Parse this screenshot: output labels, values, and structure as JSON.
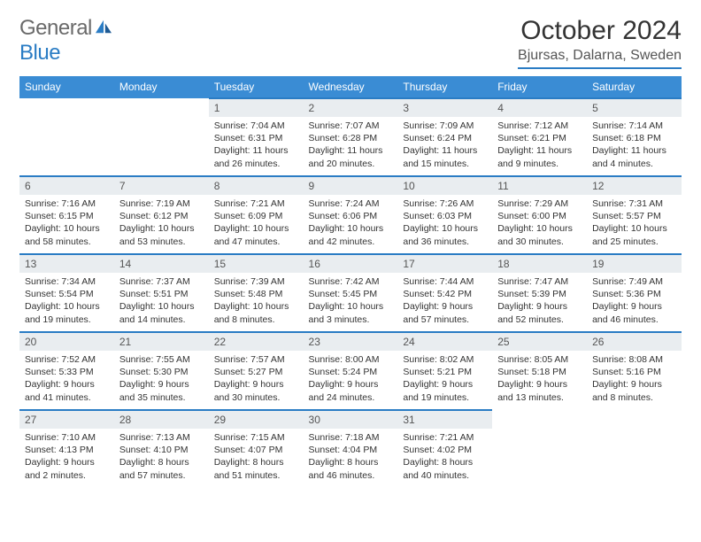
{
  "logo": {
    "word1": "General",
    "word2": "Blue"
  },
  "title": "October 2024",
  "location": "Bjursas, Dalarna, Sweden",
  "colors": {
    "header_bg": "#3a8cd4",
    "header_text": "#ffffff",
    "rule": "#2a7cc4",
    "daynum_bg": "#e9edf0",
    "logo_gray": "#6a6a6a",
    "logo_blue": "#2a7cc4",
    "body_text": "#333333"
  },
  "weekdays": [
    "Sunday",
    "Monday",
    "Tuesday",
    "Wednesday",
    "Thursday",
    "Friday",
    "Saturday"
  ],
  "weeks": [
    [
      null,
      null,
      {
        "n": "1",
        "sr": "Sunrise: 7:04 AM",
        "ss": "Sunset: 6:31 PM",
        "dl": "Daylight: 11 hours and 26 minutes."
      },
      {
        "n": "2",
        "sr": "Sunrise: 7:07 AM",
        "ss": "Sunset: 6:28 PM",
        "dl": "Daylight: 11 hours and 20 minutes."
      },
      {
        "n": "3",
        "sr": "Sunrise: 7:09 AM",
        "ss": "Sunset: 6:24 PM",
        "dl": "Daylight: 11 hours and 15 minutes."
      },
      {
        "n": "4",
        "sr": "Sunrise: 7:12 AM",
        "ss": "Sunset: 6:21 PM",
        "dl": "Daylight: 11 hours and 9 minutes."
      },
      {
        "n": "5",
        "sr": "Sunrise: 7:14 AM",
        "ss": "Sunset: 6:18 PM",
        "dl": "Daylight: 11 hours and 4 minutes."
      }
    ],
    [
      {
        "n": "6",
        "sr": "Sunrise: 7:16 AM",
        "ss": "Sunset: 6:15 PM",
        "dl": "Daylight: 10 hours and 58 minutes."
      },
      {
        "n": "7",
        "sr": "Sunrise: 7:19 AM",
        "ss": "Sunset: 6:12 PM",
        "dl": "Daylight: 10 hours and 53 minutes."
      },
      {
        "n": "8",
        "sr": "Sunrise: 7:21 AM",
        "ss": "Sunset: 6:09 PM",
        "dl": "Daylight: 10 hours and 47 minutes."
      },
      {
        "n": "9",
        "sr": "Sunrise: 7:24 AM",
        "ss": "Sunset: 6:06 PM",
        "dl": "Daylight: 10 hours and 42 minutes."
      },
      {
        "n": "10",
        "sr": "Sunrise: 7:26 AM",
        "ss": "Sunset: 6:03 PM",
        "dl": "Daylight: 10 hours and 36 minutes."
      },
      {
        "n": "11",
        "sr": "Sunrise: 7:29 AM",
        "ss": "Sunset: 6:00 PM",
        "dl": "Daylight: 10 hours and 30 minutes."
      },
      {
        "n": "12",
        "sr": "Sunrise: 7:31 AM",
        "ss": "Sunset: 5:57 PM",
        "dl": "Daylight: 10 hours and 25 minutes."
      }
    ],
    [
      {
        "n": "13",
        "sr": "Sunrise: 7:34 AM",
        "ss": "Sunset: 5:54 PM",
        "dl": "Daylight: 10 hours and 19 minutes."
      },
      {
        "n": "14",
        "sr": "Sunrise: 7:37 AM",
        "ss": "Sunset: 5:51 PM",
        "dl": "Daylight: 10 hours and 14 minutes."
      },
      {
        "n": "15",
        "sr": "Sunrise: 7:39 AM",
        "ss": "Sunset: 5:48 PM",
        "dl": "Daylight: 10 hours and 8 minutes."
      },
      {
        "n": "16",
        "sr": "Sunrise: 7:42 AM",
        "ss": "Sunset: 5:45 PM",
        "dl": "Daylight: 10 hours and 3 minutes."
      },
      {
        "n": "17",
        "sr": "Sunrise: 7:44 AM",
        "ss": "Sunset: 5:42 PM",
        "dl": "Daylight: 9 hours and 57 minutes."
      },
      {
        "n": "18",
        "sr": "Sunrise: 7:47 AM",
        "ss": "Sunset: 5:39 PM",
        "dl": "Daylight: 9 hours and 52 minutes."
      },
      {
        "n": "19",
        "sr": "Sunrise: 7:49 AM",
        "ss": "Sunset: 5:36 PM",
        "dl": "Daylight: 9 hours and 46 minutes."
      }
    ],
    [
      {
        "n": "20",
        "sr": "Sunrise: 7:52 AM",
        "ss": "Sunset: 5:33 PM",
        "dl": "Daylight: 9 hours and 41 minutes."
      },
      {
        "n": "21",
        "sr": "Sunrise: 7:55 AM",
        "ss": "Sunset: 5:30 PM",
        "dl": "Daylight: 9 hours and 35 minutes."
      },
      {
        "n": "22",
        "sr": "Sunrise: 7:57 AM",
        "ss": "Sunset: 5:27 PM",
        "dl": "Daylight: 9 hours and 30 minutes."
      },
      {
        "n": "23",
        "sr": "Sunrise: 8:00 AM",
        "ss": "Sunset: 5:24 PM",
        "dl": "Daylight: 9 hours and 24 minutes."
      },
      {
        "n": "24",
        "sr": "Sunrise: 8:02 AM",
        "ss": "Sunset: 5:21 PM",
        "dl": "Daylight: 9 hours and 19 minutes."
      },
      {
        "n": "25",
        "sr": "Sunrise: 8:05 AM",
        "ss": "Sunset: 5:18 PM",
        "dl": "Daylight: 9 hours and 13 minutes."
      },
      {
        "n": "26",
        "sr": "Sunrise: 8:08 AM",
        "ss": "Sunset: 5:16 PM",
        "dl": "Daylight: 9 hours and 8 minutes."
      }
    ],
    [
      {
        "n": "27",
        "sr": "Sunrise: 7:10 AM",
        "ss": "Sunset: 4:13 PM",
        "dl": "Daylight: 9 hours and 2 minutes."
      },
      {
        "n": "28",
        "sr": "Sunrise: 7:13 AM",
        "ss": "Sunset: 4:10 PM",
        "dl": "Daylight: 8 hours and 57 minutes."
      },
      {
        "n": "29",
        "sr": "Sunrise: 7:15 AM",
        "ss": "Sunset: 4:07 PM",
        "dl": "Daylight: 8 hours and 51 minutes."
      },
      {
        "n": "30",
        "sr": "Sunrise: 7:18 AM",
        "ss": "Sunset: 4:04 PM",
        "dl": "Daylight: 8 hours and 46 minutes."
      },
      {
        "n": "31",
        "sr": "Sunrise: 7:21 AM",
        "ss": "Sunset: 4:02 PM",
        "dl": "Daylight: 8 hours and 40 minutes."
      },
      null,
      null
    ]
  ]
}
